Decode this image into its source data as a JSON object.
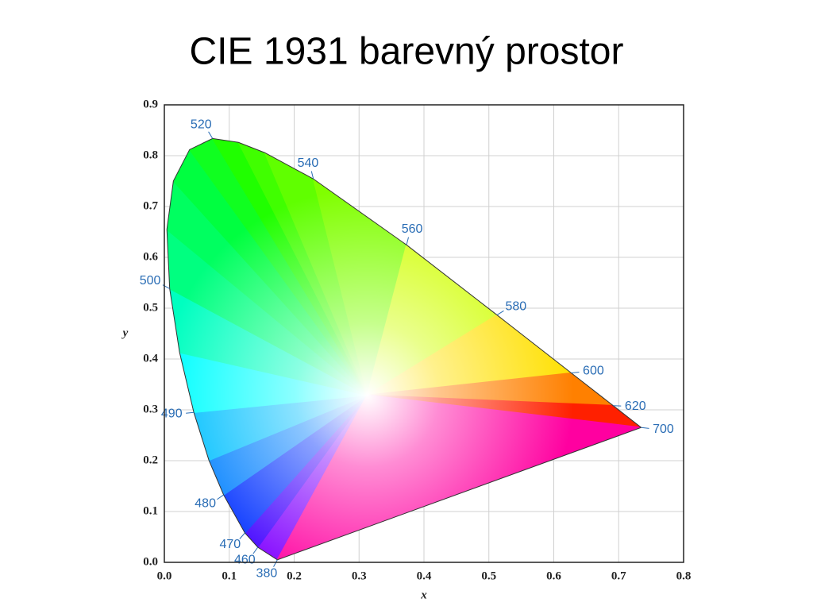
{
  "chart_data": {
    "type": "chromaticity",
    "title": "CIE 1931 barevný prostor",
    "xlabel": "x",
    "ylabel": "y",
    "xlim": [
      0,
      0.8
    ],
    "ylim": [
      0,
      0.9
    ],
    "xticks": [
      {
        "value": 0,
        "label": "0.0"
      },
      0.1,
      0.2,
      0.3,
      0.4,
      0.5,
      0.6,
      0.7,
      0.8
    ],
    "yticks": [
      {
        "value": 0,
        "label": "0.0"
      },
      0.1,
      0.2,
      0.3,
      0.4,
      0.5,
      0.6,
      0.7,
      0.8,
      0.9
    ],
    "grid": true,
    "locus": {
      "x": [
        0.1741,
        0.144,
        0.1241,
        0.0913,
        0.0687,
        0.0454,
        0.0235,
        0.0082,
        0.0039,
        0.0139,
        0.0389,
        0.0743,
        0.1142,
        0.1547,
        0.2296,
        0.3731,
        0.5125,
        0.627,
        0.6915,
        0.7347
      ],
      "y": [
        0.005,
        0.0297,
        0.0578,
        0.1327,
        0.2007,
        0.295,
        0.4127,
        0.5384,
        0.6548,
        0.7502,
        0.812,
        0.8338,
        0.8262,
        0.8059,
        0.7543,
        0.6245,
        0.4866,
        0.3725,
        0.3083,
        0.2653
      ],
      "wavelengths": [
        380,
        460,
        470,
        480,
        null,
        490,
        null,
        500,
        null,
        null,
        null,
        520,
        null,
        null,
        540,
        560,
        580,
        600,
        620,
        700
      ],
      "colors": [
        "#8000ff",
        "#4000ff",
        "#0030ff",
        "#0080ff",
        "#00c0ff",
        "#00ffff",
        "#00ffc0",
        "#00ff80",
        "#00ff60",
        "#00ff40",
        "#10ff20",
        "#20ff00",
        "#40ff00",
        "#60ff00",
        "#80ff00",
        "#d0ff00",
        "#ffe000",
        "#ff8000",
        "#ff2000",
        "#ff00a0"
      ]
    }
  }
}
